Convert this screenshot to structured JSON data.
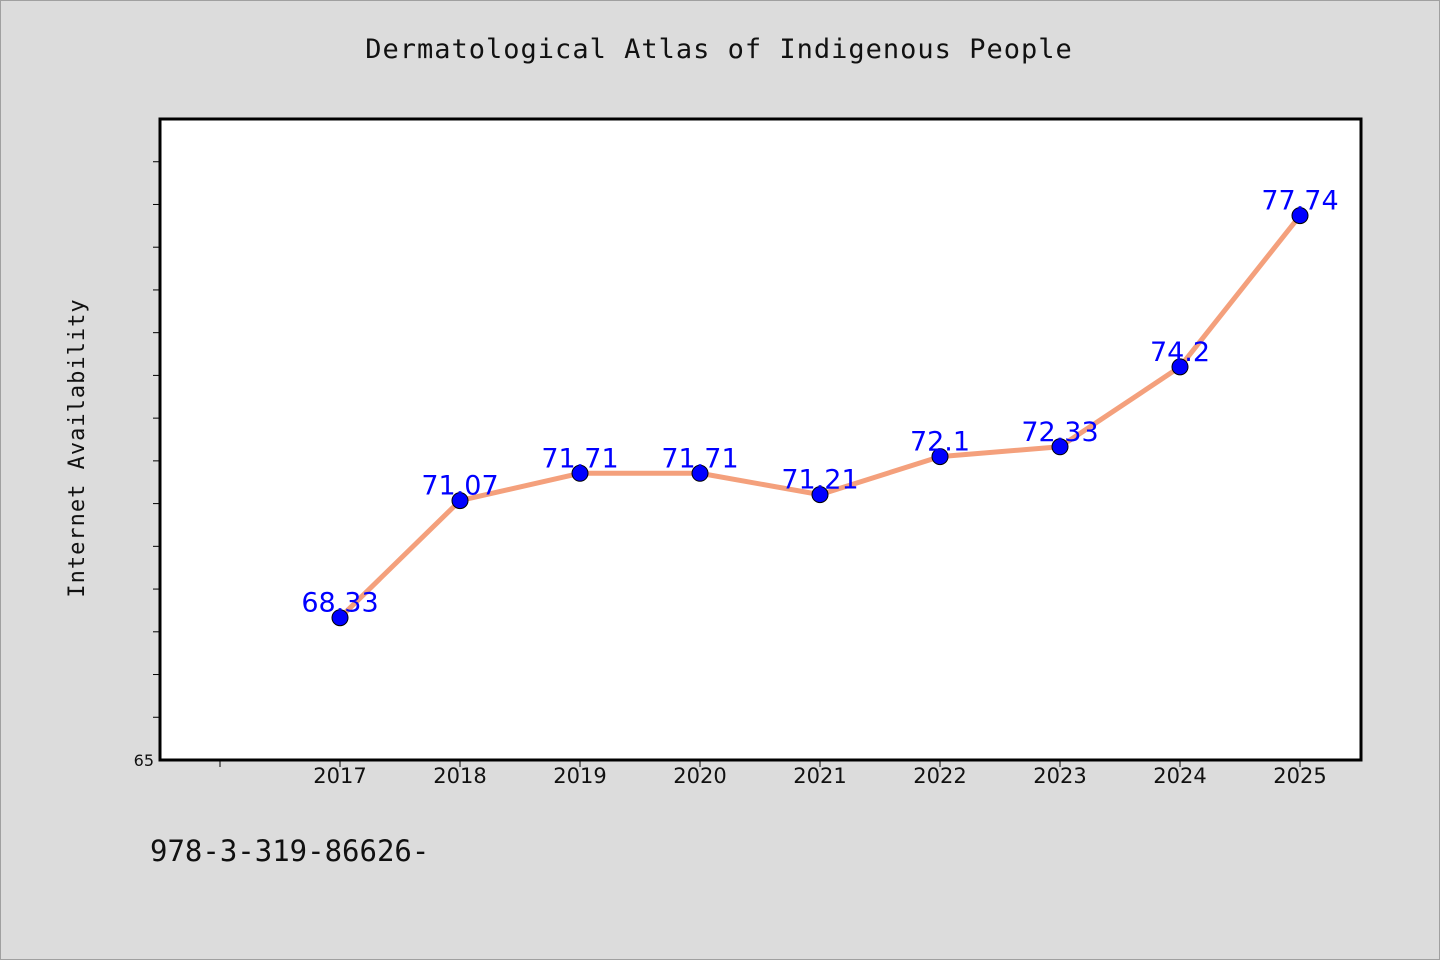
{
  "chart_data": {
    "type": "line",
    "title": "Dermatological Atlas of Indigenous People",
    "ylabel": "Internet Availability",
    "xlabel": "",
    "categories": [
      "2017",
      "2018",
      "2019",
      "2020",
      "2021",
      "2022",
      "2023",
      "2024",
      "2025"
    ],
    "series": [
      {
        "values": [
          68.33,
          71.07,
          71.71,
          71.71,
          71.21,
          72.1,
          72.33,
          74.2,
          77.74
        ],
        "labels": [
          "68.33",
          "71.07",
          "71.71",
          "71.71",
          "71.21",
          "72.1",
          "72.33",
          "74.2",
          "77.74"
        ],
        "line_color": "#f4a07c",
        "marker_color": "#0000ff"
      }
    ],
    "ylim": [
      65,
      80
    ],
    "y_tick_label": "65",
    "grid": false,
    "legend": "none"
  },
  "footer_text": "978-3-319-86626-"
}
